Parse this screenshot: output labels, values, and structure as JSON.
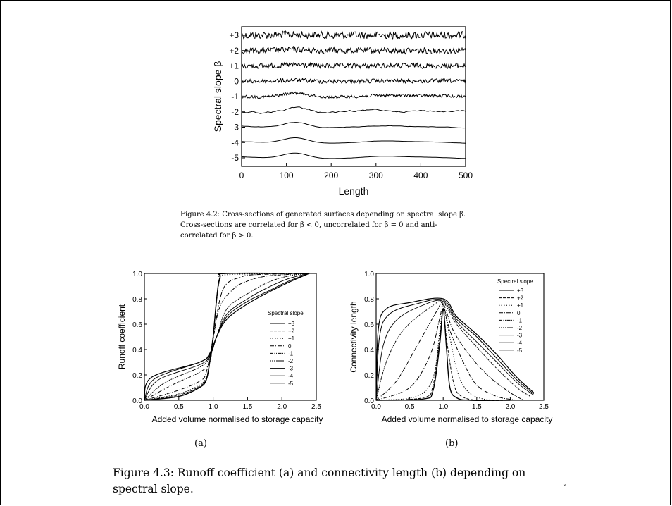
{
  "figure_4_2": {
    "caption_lines": [
      "Figure 4.2: Cross-sections of generated surfaces depending on spectral slope β.",
      "Cross-sections are correlated for β < 0, uncorrelated for β = 0 and anti-",
      "correlated for β > 0."
    ]
  },
  "figure_4_3": {
    "caption_lines": [
      "Figure 4.3: Runoff coefficient (a) and connectivity length (b) depending on",
      "spectral slope."
    ],
    "label_a": "(a)",
    "label_b": "(b)"
  },
  "chart_data": [
    {
      "id": "cross-sections",
      "type": "line",
      "xlabel": "Length",
      "ylabel": "Spectral slope β",
      "xlim": [
        0,
        500
      ],
      "xticks": [
        "0",
        "100",
        "200",
        "300",
        "400",
        "500"
      ],
      "yticks": [
        "+3",
        "+2",
        "+1",
        "0",
        "-1",
        "-2",
        "-3",
        "-4",
        "-5"
      ],
      "series": [
        {
          "name": "+3",
          "roughness": 1.0
        },
        {
          "name": "+2",
          "roughness": 0.85
        },
        {
          "name": "+1",
          "roughness": 0.7
        },
        {
          "name": "0",
          "roughness": 0.55
        },
        {
          "name": "-1",
          "roughness": 0.4
        },
        {
          "name": "-2",
          "roughness": 0.2
        },
        {
          "name": "-3",
          "roughness": 0.05
        },
        {
          "name": "-4",
          "roughness": 0.01
        },
        {
          "name": "-5",
          "roughness": 0.0
        }
      ]
    },
    {
      "id": "runoff",
      "type": "line",
      "xlabel": "Added volume normalised to storage capacity",
      "ylabel": "Runoff coefficient",
      "xlim": [
        0,
        2.5
      ],
      "ylim": [
        0,
        1.0
      ],
      "xticks": [
        "0.0",
        "0.5",
        "1.0",
        "1.5",
        "2.0",
        "2.5"
      ],
      "yticks": [
        "0.0",
        "0.2",
        "0.4",
        "0.6",
        "0.8",
        "1.0"
      ],
      "legend_title": "Spectral slope",
      "legend_position": "right",
      "series": [
        {
          "name": "+3",
          "x": [
            0.0,
            0.5,
            0.8,
            0.9,
            0.95,
            1.0,
            1.05,
            1.1,
            1.2,
            2.4
          ],
          "y": [
            0.0,
            0.03,
            0.1,
            0.16,
            0.3,
            0.5,
            0.8,
            0.97,
            1.0,
            1.0
          ]
        },
        {
          "name": "+2",
          "x": [
            0.0,
            0.5,
            0.8,
            0.9,
            0.95,
            1.0,
            1.05,
            1.1,
            1.2,
            2.4
          ],
          "y": [
            0.0,
            0.04,
            0.11,
            0.17,
            0.31,
            0.5,
            0.79,
            0.96,
            1.0,
            1.0
          ]
        },
        {
          "name": "+1",
          "x": [
            0.0,
            0.5,
            0.8,
            0.9,
            0.95,
            1.0,
            1.05,
            1.1,
            1.2,
            2.4
          ],
          "y": [
            0.0,
            0.05,
            0.12,
            0.18,
            0.31,
            0.5,
            0.78,
            0.95,
            0.99,
            1.0
          ]
        },
        {
          "name": "0",
          "x": [
            0.0,
            0.5,
            0.8,
            0.9,
            1.0,
            1.1,
            1.2,
            1.4,
            1.6,
            2.4
          ],
          "y": [
            0.0,
            0.08,
            0.15,
            0.22,
            0.5,
            0.8,
            0.92,
            0.97,
            0.99,
            1.0
          ]
        },
        {
          "name": "-1",
          "x": [
            0.0,
            0.4,
            0.8,
            0.95,
            1.0,
            1.1,
            1.3,
            1.5,
            1.8,
            2.4
          ],
          "y": [
            0.0,
            0.12,
            0.22,
            0.3,
            0.48,
            0.74,
            0.88,
            0.94,
            0.98,
            1.0
          ]
        },
        {
          "name": "-2",
          "x": [
            0.0,
            0.3,
            0.8,
            0.95,
            1.05,
            1.2,
            1.5,
            1.8,
            2.1,
            2.4
          ],
          "y": [
            0.0,
            0.14,
            0.26,
            0.34,
            0.5,
            0.72,
            0.84,
            0.93,
            0.98,
            1.0
          ]
        },
        {
          "name": "-3",
          "x": [
            0.0,
            0.2,
            0.8,
            0.95,
            1.05,
            1.2,
            1.5,
            1.8,
            2.1,
            2.4
          ],
          "y": [
            0.0,
            0.16,
            0.28,
            0.35,
            0.5,
            0.68,
            0.8,
            0.89,
            0.96,
            1.0
          ]
        },
        {
          "name": "-4",
          "x": [
            0.0,
            0.15,
            0.8,
            0.95,
            1.05,
            1.2,
            1.5,
            1.8,
            2.1,
            2.4
          ],
          "y": [
            0.0,
            0.17,
            0.3,
            0.36,
            0.5,
            0.66,
            0.78,
            0.86,
            0.94,
            1.0
          ]
        },
        {
          "name": "-5",
          "x": [
            0.0,
            0.1,
            0.8,
            0.95,
            1.05,
            1.2,
            1.5,
            1.8,
            2.1,
            2.4
          ],
          "y": [
            0.0,
            0.18,
            0.3,
            0.37,
            0.5,
            0.64,
            0.76,
            0.85,
            0.93,
            1.0
          ]
        }
      ]
    },
    {
      "id": "connectivity",
      "type": "line",
      "xlabel": "Added volume normalised to storage capacity",
      "ylabel": "Connectivity length",
      "xlim": [
        0,
        2.5
      ],
      "ylim": [
        0,
        1.0
      ],
      "xticks": [
        "0.0",
        "0.5",
        "1.0",
        "1.5",
        "2.0",
        "2.5"
      ],
      "yticks": [
        "0.0",
        "0.2",
        "0.4",
        "0.6",
        "0.8",
        "1.0"
      ],
      "legend_title": "Spectral slope",
      "legend_position": "top-right",
      "series": [
        {
          "name": "+3",
          "x": [
            0.0,
            0.7,
            0.85,
            0.95,
            1.0,
            1.05,
            1.1,
            1.2,
            1.4,
            2.0
          ],
          "y": [
            0.0,
            0.01,
            0.08,
            0.45,
            0.72,
            0.4,
            0.1,
            0.02,
            0.0,
            0.0
          ]
        },
        {
          "name": "+2",
          "x": [
            0.0,
            0.7,
            0.85,
            0.95,
            1.0,
            1.05,
            1.15,
            1.25,
            1.5,
            2.0
          ],
          "y": [
            0.0,
            0.02,
            0.12,
            0.5,
            0.73,
            0.48,
            0.15,
            0.04,
            0.0,
            0.0
          ]
        },
        {
          "name": "+1",
          "x": [
            0.0,
            0.6,
            0.85,
            0.95,
            1.0,
            1.08,
            1.2,
            1.35,
            1.6,
            2.0
          ],
          "y": [
            0.0,
            0.03,
            0.18,
            0.55,
            0.74,
            0.55,
            0.25,
            0.08,
            0.01,
            0.0
          ]
        },
        {
          "name": "0",
          "x": [
            0.0,
            0.5,
            0.8,
            0.95,
            1.0,
            1.1,
            1.3,
            1.5,
            1.8,
            2.1
          ],
          "y": [
            0.0,
            0.1,
            0.35,
            0.65,
            0.75,
            0.55,
            0.3,
            0.12,
            0.03,
            0.0
          ]
        },
        {
          "name": "-1",
          "x": [
            0.0,
            0.3,
            0.6,
            0.9,
            1.0,
            1.15,
            1.4,
            1.7,
            2.0,
            2.2
          ],
          "y": [
            0.0,
            0.15,
            0.42,
            0.7,
            0.76,
            0.55,
            0.35,
            0.18,
            0.06,
            0.0
          ]
        },
        {
          "name": "-2",
          "x": [
            0.0,
            0.15,
            0.4,
            0.8,
            1.0,
            1.2,
            1.5,
            1.8,
            2.1,
            2.3
          ],
          "y": [
            0.0,
            0.3,
            0.55,
            0.73,
            0.77,
            0.6,
            0.42,
            0.25,
            0.1,
            0.03
          ]
        },
        {
          "name": "-3",
          "x": [
            0.0,
            0.1,
            0.3,
            0.7,
            1.0,
            1.2,
            1.5,
            1.8,
            2.1,
            2.35
          ],
          "y": [
            0.0,
            0.42,
            0.63,
            0.75,
            0.78,
            0.62,
            0.46,
            0.3,
            0.14,
            0.04
          ]
        },
        {
          "name": "-4",
          "x": [
            0.0,
            0.05,
            0.2,
            0.6,
            1.0,
            1.2,
            1.5,
            1.8,
            2.1,
            2.35
          ],
          "y": [
            0.0,
            0.5,
            0.68,
            0.76,
            0.79,
            0.64,
            0.5,
            0.33,
            0.16,
            0.05
          ]
        },
        {
          "name": "-5",
          "x": [
            0.0,
            0.03,
            0.15,
            0.5,
            1.0,
            1.2,
            1.5,
            1.8,
            2.1,
            2.35
          ],
          "y": [
            0.0,
            0.55,
            0.72,
            0.77,
            0.8,
            0.66,
            0.52,
            0.36,
            0.18,
            0.06
          ]
        }
      ]
    }
  ]
}
